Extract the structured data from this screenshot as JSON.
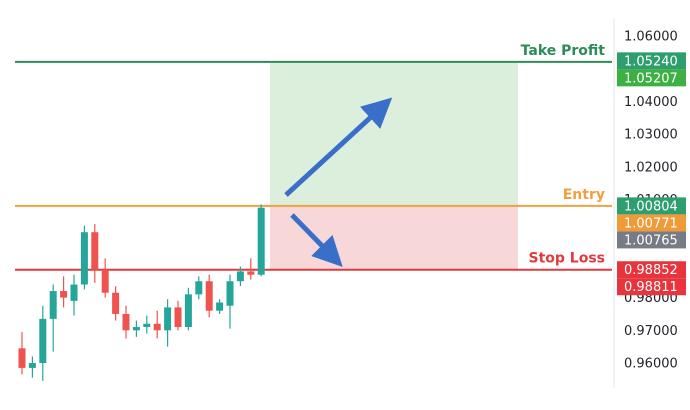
{
  "chart_data": {
    "type": "candlestick",
    "title": "",
    "xlabel": "",
    "ylabel": "",
    "ylim": [
      0.955,
      1.062
    ],
    "y_ticks": [
      "1.06000",
      "1.04000",
      "1.03000",
      "1.02000",
      "1.01000",
      "0.98000",
      "0.97000",
      "0.96000"
    ],
    "candles": [
      {
        "o": 0.9645,
        "h": 0.9695,
        "l": 0.9565,
        "c": 0.9585
      },
      {
        "o": 0.9585,
        "h": 0.962,
        "l": 0.9555,
        "c": 0.96
      },
      {
        "o": 0.96,
        "h": 0.9775,
        "l": 0.9545,
        "c": 0.9735
      },
      {
        "o": 0.9735,
        "h": 0.984,
        "l": 0.9635,
        "c": 0.982
      },
      {
        "o": 0.982,
        "h": 0.9865,
        "l": 0.977,
        "c": 0.98
      },
      {
        "o": 0.979,
        "h": 0.987,
        "l": 0.9745,
        "c": 0.984
      },
      {
        "o": 0.984,
        "h": 1.002,
        "l": 0.9825,
        "c": 1.0
      },
      {
        "o": 1.0,
        "h": 1.0025,
        "l": 0.9845,
        "c": 0.9885
      },
      {
        "o": 0.9885,
        "h": 0.992,
        "l": 0.98,
        "c": 0.9815
      },
      {
        "o": 0.9815,
        "h": 0.9835,
        "l": 0.973,
        "c": 0.975
      },
      {
        "o": 0.975,
        "h": 0.9775,
        "l": 0.9675,
        "c": 0.97
      },
      {
        "o": 0.97,
        "h": 0.973,
        "l": 0.968,
        "c": 0.971
      },
      {
        "o": 0.971,
        "h": 0.9745,
        "l": 0.969,
        "c": 0.972
      },
      {
        "o": 0.972,
        "h": 0.976,
        "l": 0.9675,
        "c": 0.97
      },
      {
        "o": 0.97,
        "h": 0.9795,
        "l": 0.965,
        "c": 0.977
      },
      {
        "o": 0.977,
        "h": 0.979,
        "l": 0.97,
        "c": 0.971
      },
      {
        "o": 0.971,
        "h": 0.983,
        "l": 0.97,
        "c": 0.981
      },
      {
        "o": 0.981,
        "h": 0.9865,
        "l": 0.9795,
        "c": 0.985
      },
      {
        "o": 0.985,
        "h": 0.987,
        "l": 0.974,
        "c": 0.976
      },
      {
        "o": 0.976,
        "h": 0.9795,
        "l": 0.975,
        "c": 0.9785
      },
      {
        "o": 0.9775,
        "h": 0.987,
        "l": 0.9705,
        "c": 0.985
      },
      {
        "o": 0.985,
        "h": 0.9895,
        "l": 0.9835,
        "c": 0.988
      },
      {
        "o": 0.988,
        "h": 0.992,
        "l": 0.9855,
        "c": 0.987
      },
      {
        "o": 0.987,
        "h": 1.0085,
        "l": 0.9865,
        "c": 1.0075
      }
    ],
    "levels": {
      "take_profit": {
        "label": "Take Profit",
        "value": 1.05207,
        "badge": "1.05207",
        "color": "#2e8b57"
      },
      "entry": {
        "label": "Entry",
        "value": 1.00804,
        "badge": "1.00804",
        "color": "#f0a040"
      },
      "stop_loss": {
        "label": "Stop Loss",
        "value": 0.98852,
        "badge": "0.98852",
        "color": "#e03a3e"
      }
    },
    "price_badges": [
      {
        "text": "1.05240",
        "value": 1.0524,
        "color": "#2e9e6e"
      },
      {
        "text": "1.05207",
        "value": 1.05207,
        "color": "#3cb043"
      },
      {
        "text": "1.00804",
        "value": 1.00804,
        "color": "#2e9e6e"
      },
      {
        "text": "1.00771",
        "value": 1.00771,
        "color": "#f19a38"
      },
      {
        "text": "1.00765",
        "value": 1.00765,
        "color": "#767b86"
      },
      {
        "text": "0.98852",
        "value": 0.98852,
        "color": "#e8343d"
      },
      {
        "text": "0.98811",
        "value": 0.98811,
        "color": "#e8343d"
      }
    ],
    "colors": {
      "up": "#26a69a",
      "down": "#ef5350",
      "profit_zone": "#dcefdc",
      "loss_zone": "#f7d7d7",
      "arrow": "#3a6fc9"
    }
  }
}
